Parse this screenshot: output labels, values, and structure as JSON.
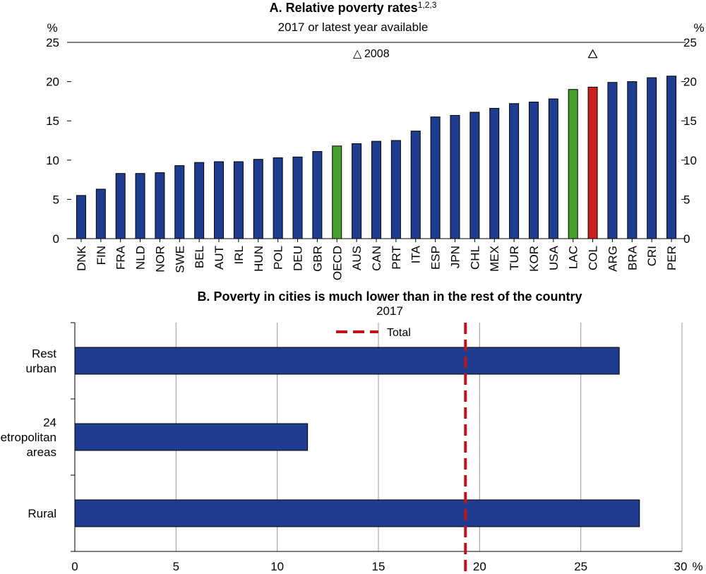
{
  "chart_data": [
    {
      "type": "bar",
      "title": "A. Relative poverty rates",
      "title_superscript": "1,2,3",
      "subtitle": "2017 or latest year available",
      "y_unit_left": "%",
      "y_unit_right": "%",
      "ylim": [
        0,
        25
      ],
      "yticks": [
        0,
        5,
        10,
        15,
        20,
        25
      ],
      "grid": false,
      "categories": [
        "DNK",
        "FIN",
        "FRA",
        "NLD",
        "NOR",
        "SWE",
        "BEL",
        "AUT",
        "IRL",
        "HUN",
        "POL",
        "DEU",
        "GBR",
        "OECD",
        "AUS",
        "CAN",
        "PRT",
        "ITA",
        "ESP",
        "JPN",
        "CHL",
        "MEX",
        "TUR",
        "KOR",
        "USA",
        "LAC",
        "COL",
        "ARG",
        "BRA",
        "CRI",
        "PER"
      ],
      "values": [
        5.5,
        6.3,
        8.3,
        8.3,
        8.4,
        9.3,
        9.7,
        9.8,
        9.8,
        10.1,
        10.3,
        10.4,
        11.1,
        11.8,
        12.1,
        12.4,
        12.5,
        13.7,
        15.5,
        15.7,
        16.1,
        16.6,
        17.2,
        17.4,
        17.8,
        19.0,
        19.3,
        19.9,
        20.0,
        20.5,
        20.7
      ],
      "bar_colors": {
        "default": "#1f3d8f",
        "OECD": "#4aa02c",
        "LAC": "#4aa02c",
        "COL": "#cc1f1f"
      },
      "markers_2008": [
        {
          "category": "COL",
          "value": 23.5
        }
      ],
      "legend": [
        {
          "symbol": "△",
          "label": "2008"
        }
      ],
      "legend_placement": "top-center"
    },
    {
      "type": "bar",
      "orientation": "horizontal",
      "title": "B. Poverty in cities is much lower than in the rest of the country",
      "subtitle": "2017",
      "x_unit": "%",
      "xlim": [
        0,
        30
      ],
      "xticks": [
        0,
        5,
        10,
        15,
        20,
        25,
        30
      ],
      "grid": true,
      "categories": [
        [
          "Rest",
          "urban"
        ],
        [
          "24",
          "metropolitan",
          "areas"
        ],
        [
          "Rural"
        ]
      ],
      "values": [
        26.9,
        11.5,
        27.9
      ],
      "bar_color": "#1f3d8f",
      "reference_line": {
        "label": "Total",
        "value": 19.3,
        "color": "#c0141c",
        "style": "dashed"
      },
      "legend_placement": "top-center"
    }
  ]
}
